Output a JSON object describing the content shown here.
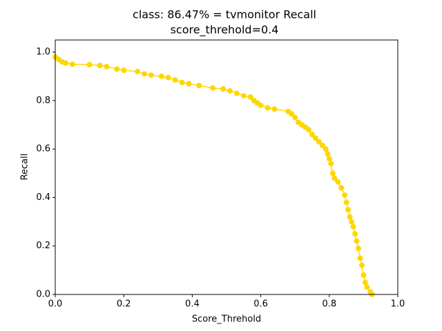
{
  "chart_data": {
    "type": "line",
    "title": [
      "class: 86.47% = tvmonitor Recall",
      "score_threhold=0.4"
    ],
    "xlabel": "Score_Threhold",
    "ylabel": "Recall",
    "color": "#ffd700",
    "x": [
      0,
      0.01,
      0.02,
      0.03,
      0.05,
      0.1,
      0.13,
      0.15,
      0.18,
      0.2,
      0.24,
      0.26,
      0.28,
      0.31,
      0.33,
      0.35,
      0.37,
      0.39,
      0.42,
      0.46,
      0.49,
      0.51,
      0.53,
      0.55,
      0.57,
      0.58,
      0.59,
      0.6,
      0.62,
      0.64,
      0.68,
      0.69,
      0.7,
      0.71,
      0.72,
      0.73,
      0.74,
      0.75,
      0.76,
      0.77,
      0.78,
      0.79,
      0.795,
      0.8,
      0.805,
      0.81,
      0.815,
      0.825,
      0.835,
      0.845,
      0.85,
      0.855,
      0.86,
      0.865,
      0.87,
      0.875,
      0.88,
      0.885,
      0.89,
      0.895,
      0.9,
      0.905,
      0.91,
      0.92,
      0.925
    ],
    "values": [
      0.98,
      0.97,
      0.96,
      0.955,
      0.95,
      0.948,
      0.945,
      0.94,
      0.93,
      0.925,
      0.92,
      0.91,
      0.905,
      0.9,
      0.895,
      0.885,
      0.875,
      0.87,
      0.862,
      0.852,
      0.848,
      0.84,
      0.83,
      0.82,
      0.815,
      0.8,
      0.79,
      0.78,
      0.77,
      0.765,
      0.755,
      0.745,
      0.73,
      0.71,
      0.7,
      0.69,
      0.68,
      0.66,
      0.645,
      0.63,
      0.615,
      0.6,
      0.58,
      0.56,
      0.54,
      0.5,
      0.48,
      0.465,
      0.44,
      0.41,
      0.38,
      0.35,
      0.32,
      0.3,
      0.28,
      0.25,
      0.22,
      0.19,
      0.15,
      0.12,
      0.08,
      0.05,
      0.03,
      0.01,
      0.0
    ],
    "xlim": [
      0,
      1
    ],
    "ylim": [
      0,
      1.05
    ],
    "xticks": [
      {
        "value": 0,
        "label": "0.0"
      },
      {
        "value": 0.2,
        "label": "0.2"
      },
      {
        "value": 0.4,
        "label": "0.4"
      },
      {
        "value": 0.6,
        "label": "0.6"
      },
      {
        "value": 0.8,
        "label": "0.8"
      },
      {
        "value": 1,
        "label": "1.0"
      }
    ],
    "yticks": [
      {
        "value": 0,
        "label": "0.0"
      },
      {
        "value": 0.2,
        "label": "0.2"
      },
      {
        "value": 0.4,
        "label": "0.4"
      },
      {
        "value": 0.6,
        "label": "0.6"
      },
      {
        "value": 0.8,
        "label": "0.8"
      },
      {
        "value": 1,
        "label": "1.0"
      }
    ],
    "grid": false
  }
}
